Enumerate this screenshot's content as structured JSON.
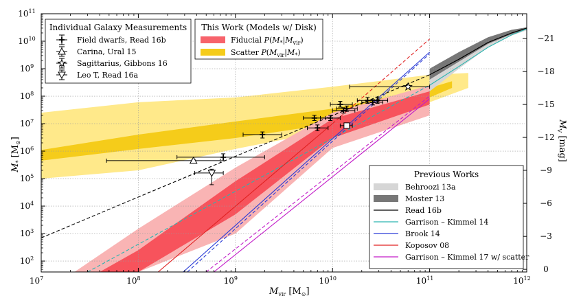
{
  "chart_data": {
    "type": "line",
    "xscale": "log",
    "yscale": "log",
    "xlabel": "M_vir [M_⊙]",
    "ylabel": "M_* [M_⊙]",
    "y2label": "M_V [mag]",
    "xlim": [
      10000000,
      1000000000000
    ],
    "ylim": [
      40,
      100000000000
    ],
    "x_tick_labels": [
      "10^7",
      "10^8",
      "10^9",
      "10^10",
      "10^11",
      "10^12"
    ],
    "y_tick_labels": [
      "10^2",
      "10^3",
      "10^4",
      "10^5",
      "10^6",
      "10^7",
      "10^8",
      "10^9",
      "10^10",
      "10^11"
    ],
    "y2_ticks": [
      {
        "mag": 0,
        "mstar": 50
      },
      {
        "mag": -3,
        "mstar": 790
      },
      {
        "mag": -6,
        "mstar": 12600
      },
      {
        "mag": -9,
        "mstar": 200000
      },
      {
        "mag": -12,
        "mstar": 3160000
      },
      {
        "mag": -15,
        "mstar": 50000000
      },
      {
        "mag": -18,
        "mstar": 790000000
      },
      {
        "mag": -21,
        "mstar": 12600000000
      }
    ],
    "grid": true,
    "bands": [
      {
        "name": "Scatter P(M_vir|M_*)",
        "kind": "outer",
        "color": "#ffe98a",
        "x": [
          10000000.0,
          100000000.0,
          1000000000.0,
          10000000000.0,
          100000000000.0,
          250000000000.0
        ],
        "upper": [
          25000000.0,
          60000000.0,
          90000000.0,
          220000000.0,
          600000000.0,
          700000000.0
        ],
        "lower": [
          100000.0,
          200000.0,
          1200000.0,
          6000000.0,
          60000000.0,
          200000000.0
        ]
      },
      {
        "name": "Scatter P(M_vir|M_*)",
        "kind": "inner",
        "color": "#f5cc1a",
        "x": [
          10000000.0,
          100000000.0,
          1000000000.0,
          10000000000.0,
          100000000000.0,
          170000000000.0
        ],
        "upper": [
          1100000.0,
          4000000.0,
          12000000.0,
          35000000.0,
          200000000.0,
          350000000.0
        ],
        "lower": [
          450000.0,
          1200000.0,
          3000000.0,
          10000000.0,
          90000000.0,
          200000000.0
        ]
      },
      {
        "name": "Fiducial P(M_*|M_vir)",
        "kind": "outer",
        "color": "#f9b4b4",
        "x": [
          22000000.0,
          100000000.0,
          1000000000.0,
          10000000000.0,
          100000000000.0
        ],
        "upper": [
          40,
          1500.0,
          250000.0,
          25000000.0,
          250000000.0
        ],
        "lower": [
          40,
          40,
          1000.0,
          1300000.0,
          20000000.0
        ]
      },
      {
        "name": "Fiducial P(M_*|M_vir)",
        "kind": "inner",
        "color": "#f7535c",
        "x": [
          40000000.0,
          100000000.0,
          1000000000.0,
          10000000000.0,
          100000000000.0
        ],
        "upper": [
          40,
          250,
          80000.0,
          15000000.0,
          150000000.0
        ],
        "lower": [
          40,
          40,
          5000.0,
          3000000.0,
          50000000.0
        ]
      },
      {
        "name": "Behroozi 13a",
        "kind": "band",
        "color": "#d6d6d6",
        "x": [
          100000000000.0,
          200000000000.0,
          400000000000.0,
          700000000000.0,
          1000000000000.0
        ],
        "upper": [
          700000000.0,
          3000000000.0,
          13000000000.0,
          25000000000.0,
          32000000000.0
        ],
        "lower": [
          150000000.0,
          1000000000.0,
          6000000000.0,
          16000000000.0,
          25000000000.0
        ]
      },
      {
        "name": "Moster 13",
        "kind": "band",
        "color": "#777777",
        "x": [
          100000000000.0,
          200000000000.0,
          400000000000.0,
          700000000000.0,
          1000000000000.0
        ],
        "upper": [
          1000000000.0,
          4000000000.0,
          14000000000.0,
          26000000000.0,
          32000000000.0
        ],
        "lower": [
          400000000.0,
          1800000000.0,
          8000000000.0,
          18000000000.0,
          27000000000.0
        ]
      }
    ],
    "series": [
      {
        "name": "Read 16b",
        "color": "#000000",
        "dash": "solid",
        "width": 1.2,
        "x": [
          100000000000.0,
          200000000000.0,
          400000000000.0,
          700000000000.0,
          1000000000000.0
        ],
        "y": [
          600000000.0,
          2200000000.0,
          9000000000.0,
          20000000000.0,
          30000000000.0
        ]
      },
      {
        "name": "Read 16b (extrapolated)",
        "color": "#000000",
        "dash": "dashed",
        "width": 1.1,
        "x": [
          10000000.0,
          100000000000.0
        ],
        "y": [
          700,
          600000000.0
        ]
      },
      {
        "name": "Garrison – Kimmel 14",
        "color": "#2bb5b0",
        "dash": "solid",
        "width": 1.1,
        "x": [
          100000000000.0,
          200000000000.0,
          400000000000.0,
          700000000000.0,
          1000000000000.0
        ],
        "y": [
          250000000.0,
          1200000000.0,
          6000000000.0,
          17000000000.0,
          28000000000.0
        ]
      },
      {
        "name": "Garrison – Kimmel 14 (extrapolated)",
        "color": "#2bb5b0",
        "dash": "dashed",
        "width": 1.1,
        "x": [
          30000000.0,
          100000000000.0
        ],
        "y": [
          40,
          250000000.0
        ]
      },
      {
        "name": "Brook 14",
        "color": "#2a3bd6",
        "dash": "solid",
        "width": 1.1,
        "x": [
          290000000.0,
          100000000000.0
        ],
        "y": [
          40,
          4000000000.0
        ]
      },
      {
        "name": "Brook 14 (extrapolated)",
        "color": "#2a3bd6",
        "dash": "dashed",
        "width": 1.1,
        "x": [
          320000000.0,
          100000000000.0
        ],
        "y": [
          40,
          3500000000.0
        ]
      },
      {
        "name": "Koposov 08",
        "color": "#e02020",
        "dash": "solid",
        "width": 1.1,
        "x": [
          160000000.0,
          10000000000.0
        ],
        "y": [
          40,
          10000000.0
        ]
      },
      {
        "name": "Koposov 08 (extrapolated)",
        "color": "#e02020",
        "dash": "dashed",
        "width": 1.1,
        "x": [
          10000000000.0,
          100000000000.0
        ],
        "y": [
          10000000.0,
          12000000000.0
        ]
      },
      {
        "name": "Garrison – Kimmel 17 w/ scatter",
        "color": "#c21ac8",
        "dash": "solid",
        "width": 1.1,
        "x": [
          600000000.0,
          100000000000.0
        ],
        "y": [
          40,
          80000000.0
        ]
      },
      {
        "name": "Garrison – Kimmel 17 w/ scatter (extrapolated)",
        "color": "#c21ac8",
        "dash": "dashed",
        "width": 1.1,
        "x": [
          500000000.0,
          100000000000.0
        ],
        "y": [
          40,
          100000000.0
        ]
      }
    ],
    "points": [
      {
        "group": "Field dwarfs, Read 16b",
        "marker": "plus",
        "x": 750000000.0,
        "y": 600000.0,
        "xerr": [
          250000000.0,
          2000000000.0
        ],
        "yerr": [
          450000.0,
          800000.0
        ]
      },
      {
        "group": "Field dwarfs, Read 16b",
        "marker": "plus",
        "x": 1900000000.0,
        "y": 4000000.0,
        "xerr": [
          1200000000.0,
          3000000000.0
        ],
        "yerr": [
          3000000.0,
          5000000.0
        ]
      },
      {
        "group": "Field dwarfs, Read 16b",
        "marker": "plus",
        "x": 6500000000.0,
        "y": 16000000.0,
        "xerr": [
          5000000000.0,
          8500000000.0
        ],
        "yerr": [
          13000000.0,
          20000000.0
        ]
      },
      {
        "group": "Field dwarfs, Read 16b",
        "marker": "plus",
        "x": 7000000000.0,
        "y": 7000000.0,
        "xerr": [
          5500000000.0,
          9000000000.0
        ],
        "yerr": [
          5500000.0,
          9000000.0
        ]
      },
      {
        "group": "Field dwarfs, Read 16b",
        "marker": "plus",
        "x": 9500000000.0,
        "y": 16000000.0,
        "xerr": [
          7500000000.0,
          12000000000.0
        ],
        "yerr": [
          13000000.0,
          20000000.0
        ]
      },
      {
        "group": "Field dwarfs, Read 16b",
        "marker": "plus",
        "x": 12000000000.0,
        "y": 50000000.0,
        "xerr": [
          9500000000.0,
          16000000000.0
        ],
        "yerr": [
          40000000.0,
          65000000.0
        ]
      },
      {
        "group": "Field dwarfs, Read 16b",
        "marker": "plus",
        "x": 13000000000.0,
        "y": 30000000.0,
        "xerr": [
          10000000000.0,
          17000000000.0
        ],
        "yerr": [
          24000000.0,
          38000000.0
        ]
      },
      {
        "group": "Field dwarfs, Read 16b",
        "marker": "plus",
        "x": 14000000000.0,
        "y": 35000000.0,
        "xerr": [
          11000000000.0,
          18000000000.0
        ],
        "yerr": [
          28000000.0,
          44000000.0
        ]
      },
      {
        "group": "Field dwarfs, Read 16b",
        "marker": "plus",
        "x": 23000000000.0,
        "y": 70000000.0,
        "xerr": [
          18000000000.0,
          30000000000.0
        ],
        "yerr": [
          55000000.0,
          90000000.0
        ]
      },
      {
        "group": "Field dwarfs, Read 16b",
        "marker": "plus",
        "x": 26000000000.0,
        "y": 60000000.0,
        "xerr": [
          20000000000.0,
          33000000000.0
        ],
        "yerr": [
          48000000.0,
          75000000.0
        ]
      },
      {
        "group": "Field dwarfs, Read 16b",
        "marker": "plus",
        "x": 29000000000.0,
        "y": 70000000.0,
        "xerr": [
          23000000000.0,
          37000000000.0
        ],
        "yerr": [
          55000000.0,
          90000000.0
        ]
      },
      {
        "group": "Field dwarfs, Read 16b",
        "marker": "square",
        "x": 14000000000.0,
        "y": 8500000.0,
        "xerr": [
          12000000000.0,
          16000000000.0
        ],
        "yerr": [
          7000000.0,
          10000000.0
        ]
      },
      {
        "group": "Carina, Ural 15",
        "marker": "triangle-up",
        "x": 370000000.0,
        "y": 450000.0,
        "xerr": [
          47000000.0,
          700000000.0
        ],
        "yerr": [
          400000.0,
          500000.0
        ]
      },
      {
        "group": "Sagittarius, Gibbons 16",
        "marker": "star",
        "x": 60000000000.0,
        "y": 220000000.0,
        "xerr": [
          15000000000.0,
          100000000000.0
        ],
        "yerr": [
          200000000.0,
          250000000.0
        ]
      },
      {
        "group": "Leo T, Read 16a",
        "marker": "triangle-down",
        "x": 570000000.0,
        "y": 160000.0,
        "xerr": [
          380000000.0,
          750000000.0
        ],
        "yerr": [
          60000.0,
          220000.0
        ]
      }
    ],
    "legend_galaxy": {
      "title": "Individual Galaxy Measurements",
      "placement": "top-left",
      "entries": [
        {
          "marker": "plus",
          "label": "Field dwarfs, Read 16b"
        },
        {
          "marker": "triangle-up",
          "label": "Carina, Ural 15"
        },
        {
          "marker": "star",
          "label": "Sagittarius, Gibbons 16"
        },
        {
          "marker": "triangle-down",
          "label": "Leo T, Read 16a"
        }
      ]
    },
    "legend_this_work": {
      "title": "This Work (Models w/ Disk)",
      "placement": "top-center",
      "entries": [
        {
          "color": "#f7636b",
          "label": "Fiducial P(M_*|M_vir)"
        },
        {
          "color": "#f5cc1a",
          "label": "Scatter P(M_vir|M_*)"
        }
      ]
    },
    "legend_previous": {
      "title": "Previous Works",
      "placement": "bottom-right",
      "entries": [
        {
          "kind": "band",
          "color": "#d6d6d6",
          "label": "Behroozi 13a"
        },
        {
          "kind": "band",
          "color": "#777777",
          "label": "Moster 13"
        },
        {
          "kind": "line",
          "color": "#000000",
          "label": "Read 16b"
        },
        {
          "kind": "line",
          "color": "#2bb5b0",
          "label": "Garrison – Kimmel 14"
        },
        {
          "kind": "line",
          "color": "#2a3bd6",
          "label": "Brook 14"
        },
        {
          "kind": "line",
          "color": "#e02020",
          "label": "Koposov 08"
        },
        {
          "kind": "line",
          "color": "#c21ac8",
          "label": "Garrison – Kimmel 17 w/ scatter"
        }
      ]
    }
  }
}
